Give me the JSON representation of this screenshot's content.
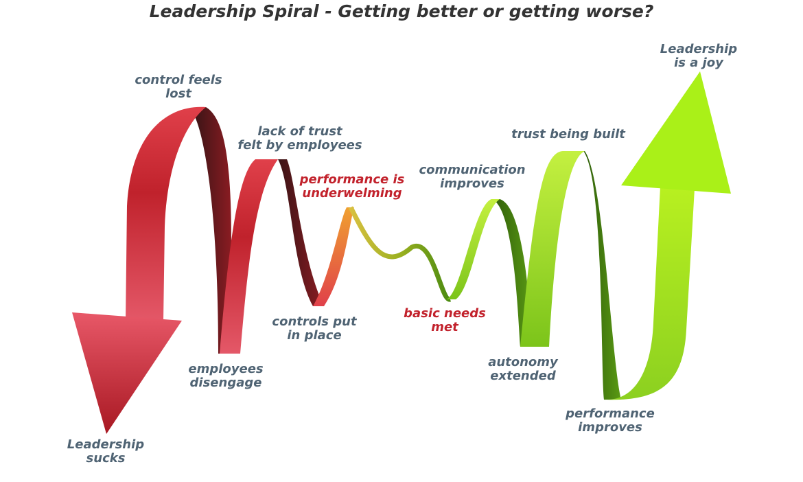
{
  "title": "Leadership Spiral - Getting better or getting worse?",
  "labels": [
    {
      "lines": [
        "control feels",
        "lost"
      ],
      "tone": "neutral"
    },
    {
      "lines": [
        "lack of trust",
        "felt by employees"
      ],
      "tone": "neutral"
    },
    {
      "lines": [
        "performance is",
        "underwelming"
      ],
      "tone": "alert"
    },
    {
      "lines": [
        "communication",
        "improves"
      ],
      "tone": "neutral"
    },
    {
      "lines": [
        "trust being built"
      ],
      "tone": "neutral"
    },
    {
      "lines": [
        "Leadership",
        "is a joy"
      ],
      "tone": "neutral"
    },
    {
      "lines": [
        "controls put",
        "in place"
      ],
      "tone": "neutral"
    },
    {
      "lines": [
        "basic needs",
        "met"
      ],
      "tone": "alert"
    },
    {
      "lines": [
        "employees",
        "disengage"
      ],
      "tone": "neutral"
    },
    {
      "lines": [
        "autonomy",
        "extended"
      ],
      "tone": "neutral"
    },
    {
      "lines": [
        "performance",
        "improves"
      ],
      "tone": "neutral"
    },
    {
      "lines": [
        "Leadership",
        "sucks"
      ],
      "tone": "neutral"
    }
  ]
}
